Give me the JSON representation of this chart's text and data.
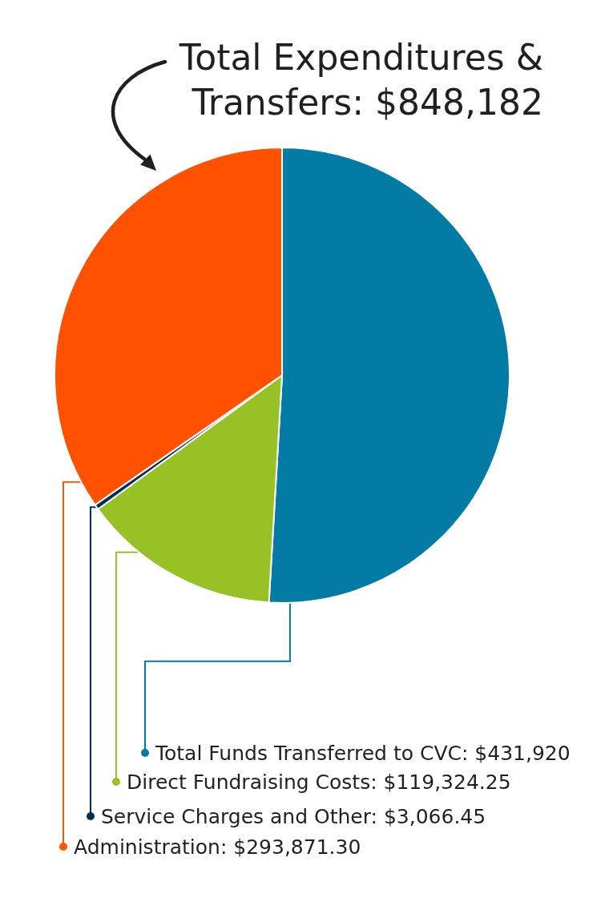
{
  "chart_data": {
    "type": "pie",
    "title": "Total Expenditures & Transfers: $848,182",
    "categories": [
      "Total Funds Transferred to CVC",
      "Direct Fundraising Costs",
      "Service Charges and Other",
      "Administration"
    ],
    "values": [
      431920,
      119324.25,
      3066.45,
      293871.3
    ],
    "value_labels": [
      "$431,920",
      "$119,324.25",
      "$3,066.45",
      "$293,871.30"
    ],
    "colors": [
      "#027ca5",
      "#97c124",
      "#013055",
      "#ff5100"
    ],
    "legend": "bottom"
  }
}
